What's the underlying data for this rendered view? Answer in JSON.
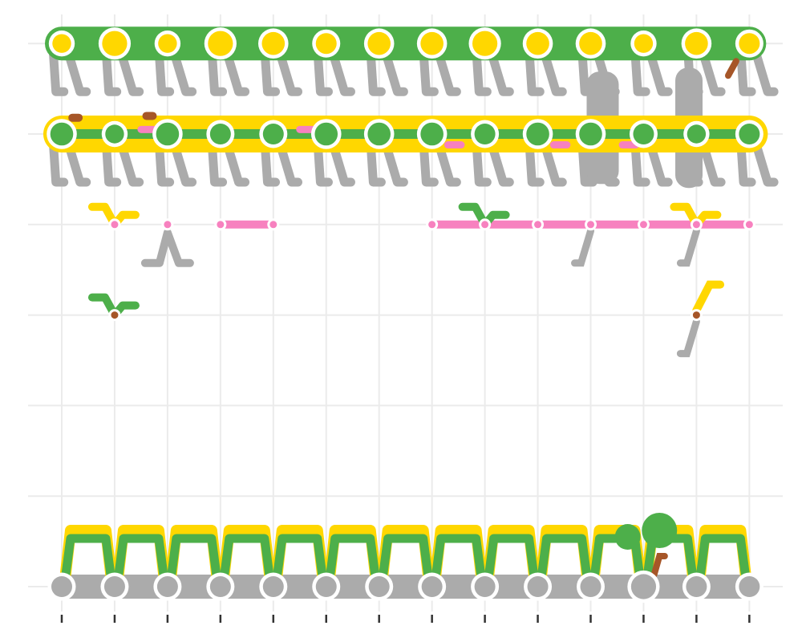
{
  "chart_data": {
    "type": "scatter",
    "title": "",
    "xlabel": "",
    "ylabel": "",
    "grid": true,
    "legend": "none",
    "x_range": [
      0,
      13
    ],
    "y_range": [
      0,
      6
    ],
    "x_ticks": [
      0,
      1,
      2,
      3,
      4,
      5,
      6,
      7,
      8,
      9,
      10,
      11,
      12,
      13
    ],
    "y_gridlines": [
      0,
      1,
      2,
      3,
      4,
      5,
      6
    ],
    "colors": {
      "stem": "#ABABAB",
      "yellow": "#FFD700",
      "green": "#4DAF4A",
      "pink": "#F781BF",
      "brown": "#A65628",
      "grid": "#EBEBEB",
      "tick": "#333333"
    },
    "series": [
      {
        "name": "row_6_yellow_nodes",
        "y": 6,
        "color": "yellow",
        "ring": "green",
        "x": [
          0,
          1,
          2,
          3,
          4,
          5,
          6,
          7,
          8,
          9,
          10,
          11,
          12,
          13
        ],
        "size": [
          0.9,
          1.2,
          0.9,
          1.2,
          1.1,
          1.0,
          1.1,
          1.1,
          1.2,
          1.1,
          1.1,
          0.9,
          1.1,
          1.0
        ],
        "cluster": "green"
      },
      {
        "name": "row_5_green_nodes",
        "y": 5,
        "color": "green",
        "ring": "yellow",
        "x": [
          0,
          1,
          2,
          3,
          4,
          5,
          6,
          7,
          8,
          9,
          10,
          11,
          12,
          13
        ],
        "size": [
          1.1,
          0.9,
          1.1,
          1.0,
          1.0,
          1.1,
          1.1,
          1.1,
          1.0,
          1.1,
          1.1,
          1.0,
          0.9,
          1.0
        ],
        "cluster": "yellow"
      },
      {
        "name": "row_4_pink_nodes",
        "y": 4,
        "color": "pink",
        "x": [
          1,
          2,
          3,
          4,
          7,
          8,
          9,
          10,
          11,
          12,
          13
        ]
      },
      {
        "name": "row_3_brown_nodes",
        "y": 3,
        "color": "brown",
        "x": [
          1,
          12
        ]
      },
      {
        "name": "row_0_grey_nodes",
        "y": 0,
        "color": "stem",
        "x": [
          0,
          1,
          2,
          3,
          4,
          5,
          6,
          7,
          8,
          9,
          10,
          11,
          12,
          13
        ],
        "size": [
          1.0,
          1.0,
          1.0,
          1.0,
          1.0,
          1.0,
          1.0,
          1.0,
          1.0,
          1.0,
          1.0,
          1.2,
          1.0,
          1.0
        ]
      }
    ],
    "branches": {
      "row_6": {
        "y": 6,
        "x": [
          0,
          1,
          2,
          3,
          4,
          5,
          6,
          7,
          8,
          9,
          10,
          11,
          12,
          13
        ]
      },
      "row_5": {
        "y": 5,
        "x": [
          0,
          1,
          2,
          3,
          4,
          5,
          6,
          7,
          8,
          9,
          10,
          11,
          12,
          13
        ]
      },
      "row_0": {
        "y": 0,
        "x": [
          0,
          1,
          2,
          3,
          4,
          5,
          6,
          7,
          8,
          9,
          10,
          11,
          12,
          13
        ]
      }
    }
  }
}
